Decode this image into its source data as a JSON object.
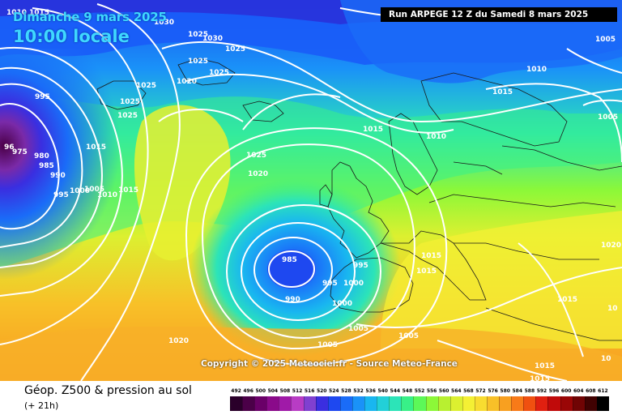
{
  "map": {
    "date": "Dimanche 9 mars 2025",
    "time": "10:00 locale",
    "run": "Run ARPEGE 12 Z du Samedi 8 mars 2025",
    "copyright": "Copyright © 2025 Meteociel.fr - Source Meteo-France",
    "isobar_labels": [
      {
        "text": "1030",
        "id": "n-1030-a"
      },
      {
        "text": "1025",
        "id": "n-1025-a"
      },
      {
        "text": "1020",
        "id": "n-1020-a"
      },
      {
        "text": "1015",
        "id": "n-1015-a"
      },
      {
        "text": "1010",
        "id": "n-1010-a"
      },
      {
        "text": "1005",
        "id": "n-1005-a"
      },
      {
        "text": "995",
        "id": "n-995-a"
      },
      {
        "text": "990",
        "id": "n-990-a"
      },
      {
        "text": "985",
        "id": "n-985-a"
      },
      {
        "text": "980",
        "id": "n-980-a"
      },
      {
        "text": "1000",
        "id": "n-1000-a"
      }
    ]
  },
  "legend": {
    "title": "Géop. Z500 & pression au sol",
    "subtitle": "(+ 21h)",
    "scale_values": [
      "492",
      "496",
      "500",
      "504",
      "508",
      "512",
      "516",
      "520",
      "524",
      "528",
      "532",
      "536",
      "540",
      "544",
      "548",
      "552",
      "556",
      "560",
      "564",
      "568",
      "572",
      "576",
      "580",
      "584",
      "588",
      "592",
      "596",
      "600",
      "604",
      "608",
      "612"
    ],
    "scale_colors": [
      "#2a002a",
      "#4b0048",
      "#6a0068",
      "#8a0a8a",
      "#a01aa8",
      "#b83cc4",
      "#8040d0",
      "#3a2ee0",
      "#1e48f0",
      "#1a6cf8",
      "#1a92f8",
      "#19b6f0",
      "#22d0d8",
      "#2ce4b8",
      "#38f088",
      "#5cf858",
      "#8cf838",
      "#b8f030",
      "#dcf030",
      "#f4f034",
      "#f8dc30",
      "#f8c028",
      "#f8a020",
      "#f87a18",
      "#f05010",
      "#e02010",
      "#c00a0a",
      "#9a0606",
      "#700404",
      "#400202",
      "#000000"
    ]
  }
}
